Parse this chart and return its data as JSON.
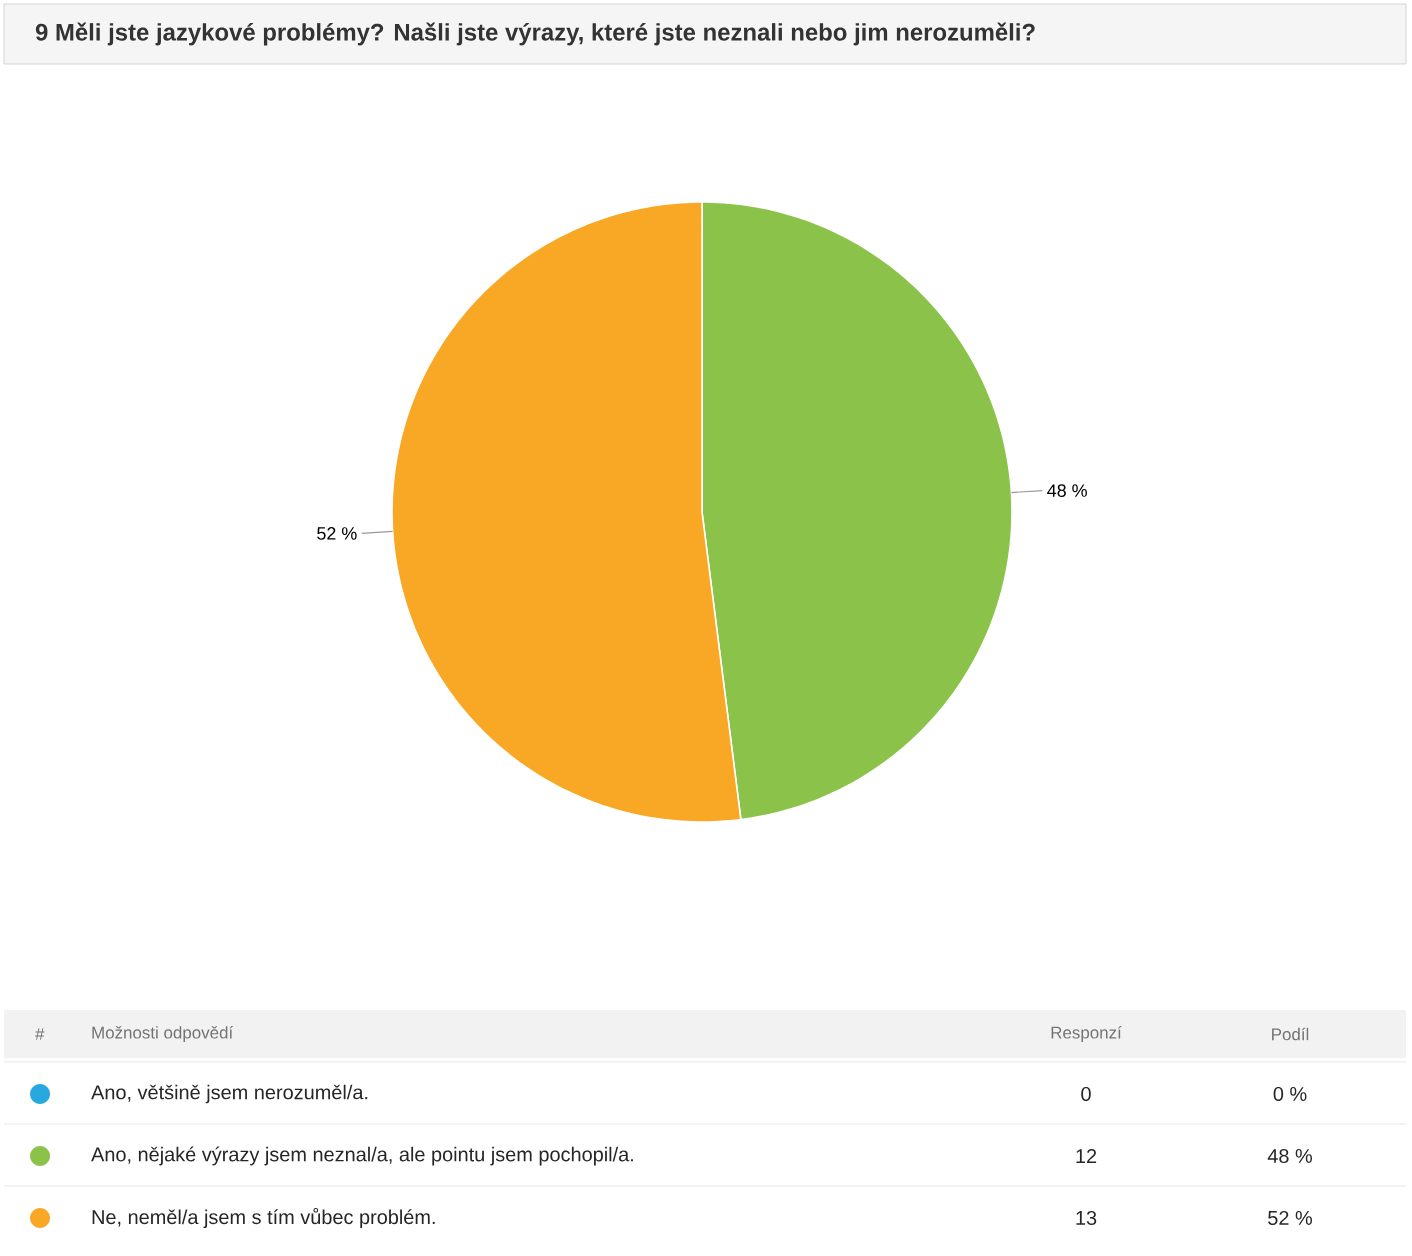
{
  "chart_data": {
    "type": "pie",
    "title": "9 Měli jste jazykové problémy? Našli jste výrazy, které jste neznali nebo jim nerozuměli?",
    "categories": [
      "Ano, většině jsem nerozuměl/a.",
      "Ano, nějaké výrazy jsem neznal/a, ale pointu jsem pochopil/a.",
      "Ne, neměl/a jsem s tím vůbec problém."
    ],
    "values": [
      0,
      48,
      52
    ],
    "value_labels": [
      "0 %",
      "48 %",
      "52 %"
    ],
    "colors": [
      "#29a8e0",
      "#8bc34a",
      "#f9a825"
    ],
    "legend": "bottom",
    "annotations": [
      "#",
      "Možnosti odpovědí",
      "Responzí",
      "Podíl",
      "0",
      "12",
      "13"
    ]
  }
}
